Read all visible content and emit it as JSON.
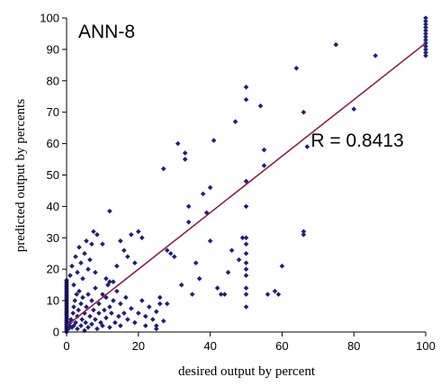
{
  "chart_data": {
    "type": "scatter",
    "title": "ANN-8",
    "xlabel": "desired output  by percent",
    "ylabel": "predicted output  by percents",
    "xlim": [
      0,
      100
    ],
    "ylim": [
      0,
      100
    ],
    "xticks": [
      "0",
      "20",
      "40",
      "60",
      "80",
      "100"
    ],
    "yticks": [
      "0",
      "10",
      "20",
      "30",
      "40",
      "50",
      "60",
      "70",
      "80",
      "90",
      "100"
    ],
    "grid": false,
    "colors": {
      "points": "#1f1f7a",
      "fit_line": "#8b2252",
      "axis": "#000000"
    },
    "fit_line": {
      "x": [
        0,
        100
      ],
      "y": [
        2.0,
        92.0
      ]
    },
    "annotation": {
      "text": "R = 0.8413",
      "x": 68,
      "y": 59
    },
    "points": [
      [
        0,
        0
      ],
      [
        0,
        0.5
      ],
      [
        0,
        1
      ],
      [
        0,
        1.5
      ],
      [
        0,
        2
      ],
      [
        0,
        2.5
      ],
      [
        0,
        3
      ],
      [
        0,
        3.5
      ],
      [
        0,
        4
      ],
      [
        0,
        4.5
      ],
      [
        0,
        5
      ],
      [
        0,
        5.5
      ],
      [
        0,
        6
      ],
      [
        0,
        6.5
      ],
      [
        0,
        7
      ],
      [
        0,
        7.5
      ],
      [
        0,
        8
      ],
      [
        0,
        8.5
      ],
      [
        0,
        9
      ],
      [
        0,
        9.5
      ],
      [
        0,
        10
      ],
      [
        0,
        10.5
      ],
      [
        0,
        11
      ],
      [
        0,
        11.5
      ],
      [
        0,
        12
      ],
      [
        0,
        12.5
      ],
      [
        0,
        13
      ],
      [
        0,
        13.5
      ],
      [
        0,
        14
      ],
      [
        0,
        14.5
      ],
      [
        0,
        15
      ],
      [
        0,
        15.5
      ],
      [
        0,
        16
      ],
      [
        0,
        16.5
      ],
      [
        0.5,
        1
      ],
      [
        0.8,
        2
      ],
      [
        1,
        3
      ],
      [
        1.2,
        4
      ],
      [
        1.5,
        1.5
      ],
      [
        1.8,
        6
      ],
      [
        2,
        2
      ],
      [
        2,
        8
      ],
      [
        2.3,
        10
      ],
      [
        2.5,
        3
      ],
      [
        2.8,
        12
      ],
      [
        3,
        5
      ],
      [
        3,
        1
      ],
      [
        3.3,
        7
      ],
      [
        3.5,
        13
      ],
      [
        4,
        2
      ],
      [
        4,
        9
      ],
      [
        4.3,
        4
      ],
      [
        4.5,
        11
      ],
      [
        5,
        6
      ],
      [
        5,
        0.5
      ],
      [
        5.3,
        3
      ],
      [
        5.5,
        8
      ],
      [
        6,
        1.5
      ],
      [
        6,
        12
      ],
      [
        6.5,
        5
      ],
      [
        7,
        2.5
      ],
      [
        7,
        10
      ],
      [
        7.5,
        7
      ],
      [
        8,
        4
      ],
      [
        8,
        14
      ],
      [
        8.5,
        1
      ],
      [
        9,
        6
      ],
      [
        9,
        9
      ],
      [
        9.5,
        3
      ],
      [
        10,
        12
      ],
      [
        10,
        2
      ],
      [
        10.5,
        7
      ],
      [
        11,
        4.5
      ],
      [
        11,
        11
      ],
      [
        11.5,
        15
      ],
      [
        12,
        8
      ],
      [
        12,
        1.5
      ],
      [
        12.5,
        6
      ],
      [
        13,
        10
      ],
      [
        13.5,
        3
      ],
      [
        14,
        13
      ],
      [
        14.5,
        5
      ],
      [
        15,
        9
      ],
      [
        15,
        2
      ],
      [
        16,
        6
      ],
      [
        16.5,
        11
      ],
      [
        17,
        4
      ],
      [
        18,
        7.5
      ],
      [
        19,
        3
      ],
      [
        20,
        6
      ],
      [
        21,
        10
      ],
      [
        22,
        5
      ],
      [
        22,
        2
      ],
      [
        23,
        8
      ],
      [
        24,
        4
      ],
      [
        25,
        1
      ],
      [
        25,
        6.5
      ],
      [
        26,
        11
      ],
      [
        27,
        3.5
      ],
      [
        28,
        9
      ],
      [
        1,
        18
      ],
      [
        1.5,
        21
      ],
      [
        2,
        15
      ],
      [
        2.5,
        24
      ],
      [
        3,
        19
      ],
      [
        3.5,
        27
      ],
      [
        4,
        22
      ],
      [
        4.5,
        17
      ],
      [
        5,
        25
      ],
      [
        5.5,
        29
      ],
      [
        6,
        20
      ],
      [
        6.5,
        23
      ],
      [
        7,
        28
      ],
      [
        7.5,
        32
      ],
      [
        8,
        19
      ],
      [
        8.5,
        31
      ],
      [
        10,
        28
      ],
      [
        12,
        38.5
      ],
      [
        13,
        16
      ],
      [
        14,
        21
      ],
      [
        15,
        29
      ],
      [
        16,
        26
      ],
      [
        17,
        24
      ],
      [
        18,
        31
      ],
      [
        19,
        22
      ],
      [
        20,
        32
      ],
      [
        21,
        30
      ],
      [
        12,
        16
      ],
      [
        11,
        17
      ],
      [
        25,
        2
      ],
      [
        26,
        9
      ],
      [
        27,
        52
      ],
      [
        28,
        26
      ],
      [
        29,
        25
      ],
      [
        30,
        24
      ],
      [
        31,
        60
      ],
      [
        32,
        15
      ],
      [
        33,
        55
      ],
      [
        33,
        57
      ],
      [
        34,
        35
      ],
      [
        34,
        40
      ],
      [
        35,
        12
      ],
      [
        36,
        22
      ],
      [
        37,
        17
      ],
      [
        38,
        44
      ],
      [
        39,
        38
      ],
      [
        40,
        29
      ],
      [
        40,
        46
      ],
      [
        41,
        61
      ],
      [
        42,
        14
      ],
      [
        43,
        12
      ],
      [
        44,
        12
      ],
      [
        45,
        19
      ],
      [
        46,
        26
      ],
      [
        47,
        67
      ],
      [
        48,
        23
      ],
      [
        49,
        30
      ],
      [
        50,
        78
      ],
      [
        50,
        74
      ],
      [
        50,
        48
      ],
      [
        50,
        40
      ],
      [
        50,
        30
      ],
      [
        50,
        28
      ],
      [
        50,
        25
      ],
      [
        50,
        22
      ],
      [
        50,
        20
      ],
      [
        50,
        18
      ],
      [
        50,
        14
      ],
      [
        50,
        12
      ],
      [
        50,
        8
      ],
      [
        54,
        72
      ],
      [
        55,
        58
      ],
      [
        55,
        53
      ],
      [
        56,
        12
      ],
      [
        58,
        13
      ],
      [
        59,
        12
      ],
      [
        60,
        21
      ],
      [
        64,
        84
      ],
      [
        66,
        70
      ],
      [
        66,
        31
      ],
      [
        66,
        32
      ],
      [
        67,
        59
      ],
      [
        75,
        91.5
      ],
      [
        80,
        71
      ],
      [
        86,
        88
      ],
      [
        100,
        100
      ],
      [
        100,
        99
      ],
      [
        100,
        98
      ],
      [
        100,
        97
      ],
      [
        100,
        96
      ],
      [
        100,
        95
      ],
      [
        100,
        94
      ],
      [
        100,
        93
      ],
      [
        100,
        92
      ],
      [
        100,
        91
      ],
      [
        100,
        90
      ],
      [
        100,
        89
      ],
      [
        100,
        88
      ]
    ]
  }
}
